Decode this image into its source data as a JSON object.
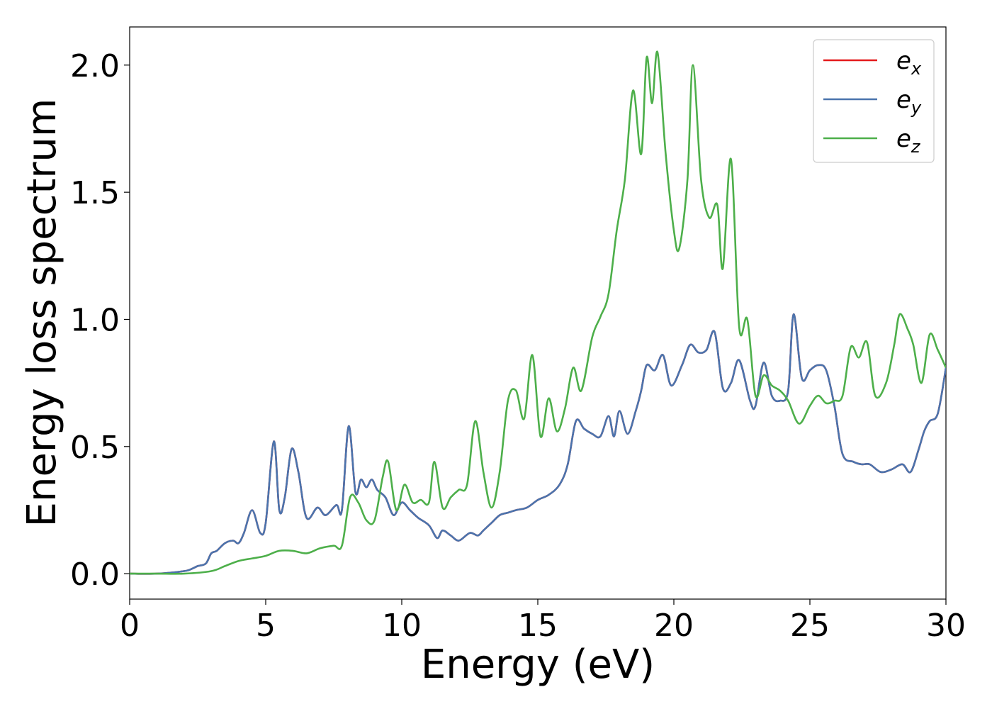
{
  "chart_data": {
    "type": "line",
    "title": "",
    "xlabel": "Energy (eV)",
    "ylabel": "Energy loss spectrum",
    "xlim": [
      0,
      30
    ],
    "ylim": [
      -0.1,
      2.15
    ],
    "xticks": [
      0,
      5,
      10,
      15,
      20,
      25,
      30
    ],
    "xtick_labels": [
      "0",
      "5",
      "10",
      "15",
      "20",
      "25",
      "30"
    ],
    "yticks": [
      0.0,
      0.5,
      1.0,
      1.5,
      2.0
    ],
    "ytick_labels": [
      "0.0",
      "0.5",
      "1.0",
      "1.5",
      "2.0"
    ],
    "grid": false,
    "legend_position": "top-right",
    "series": [
      {
        "name": "e_x",
        "label_base": "e",
        "label_sub": "x",
        "color": "#e41a1c",
        "x": [
          0,
          1,
          2,
          2.3,
          2.5,
          2.8,
          3.0,
          3.2,
          3.5,
          3.8,
          4.0,
          4.2,
          4.5,
          4.8,
          5.0,
          5.3,
          5.5,
          5.7,
          5.95,
          6.2,
          6.5,
          6.9,
          7.2,
          7.6,
          7.8,
          8.05,
          8.3,
          8.5,
          8.7,
          8.9,
          9.1,
          9.4,
          9.7,
          10.0,
          10.3,
          10.6,
          11.0,
          11.3,
          11.5,
          11.8,
          12.1,
          12.5,
          12.8,
          13.0,
          13.3,
          13.6,
          13.9,
          14.2,
          14.6,
          15.0,
          15.4,
          15.8,
          16.1,
          16.4,
          16.7,
          17.0,
          17.3,
          17.6,
          17.8,
          18.0,
          18.3,
          18.6,
          18.8,
          19.0,
          19.3,
          19.6,
          19.9,
          20.3,
          20.6,
          20.9,
          21.2,
          21.5,
          21.8,
          22.1,
          22.4,
          22.8,
          23.0,
          23.3,
          23.6,
          23.9,
          24.2,
          24.4,
          24.7,
          25.0,
          25.3,
          25.6,
          25.9,
          26.2,
          26.6,
          26.9,
          27.2,
          27.6,
          28.0,
          28.4,
          28.7,
          29.0,
          29.2,
          29.4,
          29.7,
          30.0
        ],
        "values": [
          0.0,
          0.0,
          0.01,
          0.02,
          0.03,
          0.04,
          0.08,
          0.09,
          0.12,
          0.13,
          0.12,
          0.16,
          0.25,
          0.16,
          0.2,
          0.52,
          0.25,
          0.3,
          0.49,
          0.4,
          0.22,
          0.26,
          0.23,
          0.27,
          0.25,
          0.58,
          0.32,
          0.37,
          0.34,
          0.37,
          0.33,
          0.3,
          0.23,
          0.28,
          0.25,
          0.22,
          0.19,
          0.14,
          0.17,
          0.15,
          0.13,
          0.16,
          0.15,
          0.17,
          0.2,
          0.23,
          0.24,
          0.25,
          0.26,
          0.29,
          0.31,
          0.35,
          0.43,
          0.6,
          0.57,
          0.55,
          0.54,
          0.62,
          0.54,
          0.64,
          0.55,
          0.64,
          0.72,
          0.82,
          0.8,
          0.86,
          0.74,
          0.82,
          0.9,
          0.87,
          0.88,
          0.95,
          0.73,
          0.75,
          0.84,
          0.68,
          0.66,
          0.83,
          0.7,
          0.68,
          0.72,
          1.02,
          0.77,
          0.8,
          0.82,
          0.8,
          0.66,
          0.47,
          0.44,
          0.43,
          0.43,
          0.4,
          0.41,
          0.43,
          0.4,
          0.49,
          0.56,
          0.6,
          0.63,
          0.81
        ]
      },
      {
        "name": "e_y",
        "label_base": "e",
        "label_sub": "y",
        "color": "#4a74ad",
        "x": [
          0,
          1,
          2,
          2.3,
          2.5,
          2.8,
          3.0,
          3.2,
          3.5,
          3.8,
          4.0,
          4.2,
          4.5,
          4.8,
          5.0,
          5.3,
          5.5,
          5.7,
          5.95,
          6.2,
          6.5,
          6.9,
          7.2,
          7.6,
          7.8,
          8.05,
          8.3,
          8.5,
          8.7,
          8.9,
          9.1,
          9.4,
          9.7,
          10.0,
          10.3,
          10.6,
          11.0,
          11.3,
          11.5,
          11.8,
          12.1,
          12.5,
          12.8,
          13.0,
          13.3,
          13.6,
          13.9,
          14.2,
          14.6,
          15.0,
          15.4,
          15.8,
          16.1,
          16.4,
          16.7,
          17.0,
          17.3,
          17.6,
          17.8,
          18.0,
          18.3,
          18.6,
          18.8,
          19.0,
          19.3,
          19.6,
          19.9,
          20.3,
          20.6,
          20.9,
          21.2,
          21.5,
          21.8,
          22.1,
          22.4,
          22.8,
          23.0,
          23.3,
          23.6,
          23.9,
          24.2,
          24.4,
          24.7,
          25.0,
          25.3,
          25.6,
          25.9,
          26.2,
          26.6,
          26.9,
          27.2,
          27.6,
          28.0,
          28.4,
          28.7,
          29.0,
          29.2,
          29.4,
          29.7,
          30.0
        ],
        "values": [
          0.0,
          0.0,
          0.01,
          0.02,
          0.03,
          0.04,
          0.08,
          0.09,
          0.12,
          0.13,
          0.12,
          0.16,
          0.25,
          0.16,
          0.2,
          0.52,
          0.25,
          0.3,
          0.49,
          0.4,
          0.22,
          0.26,
          0.23,
          0.27,
          0.25,
          0.58,
          0.32,
          0.37,
          0.34,
          0.37,
          0.33,
          0.3,
          0.23,
          0.28,
          0.25,
          0.22,
          0.19,
          0.14,
          0.17,
          0.15,
          0.13,
          0.16,
          0.15,
          0.17,
          0.2,
          0.23,
          0.24,
          0.25,
          0.26,
          0.29,
          0.31,
          0.35,
          0.43,
          0.6,
          0.57,
          0.55,
          0.54,
          0.62,
          0.54,
          0.64,
          0.55,
          0.64,
          0.72,
          0.82,
          0.8,
          0.86,
          0.74,
          0.82,
          0.9,
          0.87,
          0.88,
          0.95,
          0.73,
          0.75,
          0.84,
          0.68,
          0.66,
          0.83,
          0.7,
          0.68,
          0.72,
          1.02,
          0.77,
          0.8,
          0.82,
          0.8,
          0.66,
          0.47,
          0.44,
          0.43,
          0.43,
          0.4,
          0.41,
          0.43,
          0.4,
          0.49,
          0.56,
          0.6,
          0.63,
          0.81
        ]
      },
      {
        "name": "e_z",
        "label_base": "e",
        "label_sub": "z",
        "color": "#4daf4a",
        "x": [
          0,
          1,
          2,
          3.0,
          3.5,
          4.0,
          4.5,
          5.0,
          5.5,
          6.0,
          6.5,
          7.0,
          7.5,
          7.8,
          8.1,
          8.4,
          8.7,
          9.0,
          9.3,
          9.5,
          9.8,
          10.1,
          10.4,
          10.7,
          11.0,
          11.2,
          11.5,
          11.8,
          12.1,
          12.4,
          12.7,
          13.0,
          13.3,
          13.6,
          13.9,
          14.2,
          14.5,
          14.8,
          15.1,
          15.4,
          15.7,
          16.0,
          16.3,
          16.6,
          17.0,
          17.3,
          17.6,
          17.9,
          18.2,
          18.5,
          18.8,
          19.0,
          19.2,
          19.4,
          19.7,
          20.0,
          20.2,
          20.5,
          20.7,
          21.0,
          21.3,
          21.6,
          21.8,
          22.1,
          22.4,
          22.7,
          23.0,
          23.3,
          23.6,
          23.9,
          24.2,
          24.6,
          25.0,
          25.3,
          25.6,
          25.9,
          26.2,
          26.5,
          26.8,
          27.1,
          27.4,
          27.8,
          28.1,
          28.3,
          28.6,
          28.8,
          29.1,
          29.4,
          29.7,
          30.0
        ],
        "values": [
          0.0,
          0.0,
          0.0,
          0.01,
          0.03,
          0.05,
          0.06,
          0.07,
          0.09,
          0.09,
          0.08,
          0.1,
          0.11,
          0.11,
          0.3,
          0.28,
          0.21,
          0.21,
          0.38,
          0.44,
          0.25,
          0.35,
          0.28,
          0.29,
          0.28,
          0.44,
          0.26,
          0.3,
          0.33,
          0.35,
          0.6,
          0.4,
          0.26,
          0.4,
          0.68,
          0.72,
          0.61,
          0.86,
          0.54,
          0.69,
          0.56,
          0.65,
          0.81,
          0.72,
          0.93,
          1.01,
          1.1,
          1.35,
          1.55,
          1.9,
          1.65,
          2.03,
          1.85,
          2.05,
          1.65,
          1.35,
          1.28,
          1.55,
          2.0,
          1.55,
          1.4,
          1.45,
          1.2,
          1.63,
          0.97,
          1.0,
          0.7,
          0.78,
          0.74,
          0.72,
          0.68,
          0.59,
          0.66,
          0.7,
          0.67,
          0.68,
          0.7,
          0.89,
          0.85,
          0.91,
          0.7,
          0.75,
          0.9,
          1.02,
          0.96,
          0.9,
          0.75,
          0.94,
          0.88,
          0.81
        ]
      }
    ]
  }
}
